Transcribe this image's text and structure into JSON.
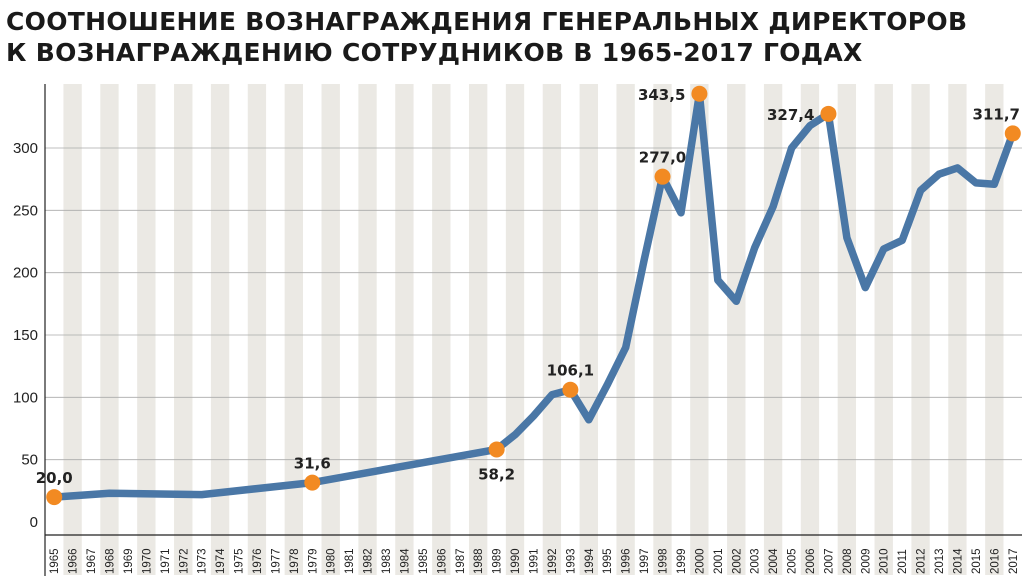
{
  "title_lines": [
    "СООТНОШЕНИЕ ВОЗНАГРАЖДЕНИЯ ГЕНЕРАЛЬНЫХ ДИРЕКТОРОВ",
    "К ВОЗНАГРАЖДЕНИЮ СОТРУДНИКОВ В 1965-2017 ГОДАХ"
  ],
  "colors": {
    "line": "#4a77a6",
    "marker": "#f28a22",
    "band_light": "#ffffff",
    "band_dark": "#ebe9e4",
    "grid": "#aaaaaa",
    "axis": "#222222"
  },
  "chart_data": {
    "type": "line",
    "title": "СООТНОШЕНИЕ ВОЗНАГРАЖДЕНИЯ ГЕНЕРАЛЬНЫХ ДИРЕКТОРОВ К ВОЗНАГРАЖДЕНИЮ СОТРУДНИКОВ В 1965-2017 ГОДАХ",
    "xlabel": "",
    "ylabel": "",
    "ylim": [
      0,
      345
    ],
    "yticks": [
      0,
      50,
      100,
      150,
      200,
      250,
      300
    ],
    "ytick_labels": [
      "0",
      "50",
      "100",
      "150",
      "200",
      "250",
      "300"
    ],
    "x_tick_labels": [
      "1965",
      "1966",
      "1967",
      "1968",
      "1969",
      "1970",
      "1971",
      "1972",
      "1973",
      "1974",
      "1975",
      "1976",
      "1977",
      "1978",
      "1979",
      "1980",
      "1981",
      "1982",
      "1983",
      "1984",
      "1985",
      "1986",
      "1987",
      "1988",
      "1989",
      "1990",
      "1991",
      "1992",
      "1993",
      "1994",
      "1995",
      "1996",
      "1997",
      "1998",
      "1999",
      "2000",
      "2001",
      "2002",
      "2003",
      "2004",
      "2005",
      "2006",
      "2007",
      "2008",
      "2009",
      "2010",
      "2011",
      "2012",
      "2013",
      "2014",
      "2015",
      "2016",
      "2017"
    ],
    "grid": true,
    "series": [
      {
        "points": [
          [
            1965,
            20.0
          ],
          [
            1968,
            23.0
          ],
          [
            1973,
            22.0
          ],
          [
            1979,
            31.6
          ],
          [
            1989,
            58.2
          ],
          [
            1990,
            70.0
          ],
          [
            1991,
            85.0
          ],
          [
            1992,
            102.0
          ],
          [
            1993,
            106.1
          ],
          [
            1994,
            82.0
          ],
          [
            1995,
            110.0
          ],
          [
            1996,
            140.0
          ],
          [
            1997,
            210.0
          ],
          [
            1998,
            277.0
          ],
          [
            1999,
            248.0
          ],
          [
            2000,
            343.5
          ],
          [
            2001,
            194.0
          ],
          [
            2002,
            177.0
          ],
          [
            2003,
            220.0
          ],
          [
            2004,
            253.0
          ],
          [
            2005,
            300.0
          ],
          [
            2006,
            318.0
          ],
          [
            2007,
            327.4
          ],
          [
            2008,
            228.0
          ],
          [
            2009,
            188.0
          ],
          [
            2010,
            219.0
          ],
          [
            2011,
            226.0
          ],
          [
            2012,
            266.0
          ],
          [
            2013,
            279.0
          ],
          [
            2014,
            284.0
          ],
          [
            2015,
            272.0
          ],
          [
            2016,
            271.0
          ],
          [
            2017,
            311.7
          ]
        ]
      }
    ],
    "highlighted": [
      {
        "x": 1965,
        "y": 20.0,
        "label": "20,0",
        "placement": "above"
      },
      {
        "x": 1979,
        "y": 31.6,
        "label": "31,6",
        "placement": "above"
      },
      {
        "x": 1989,
        "y": 58.2,
        "label": "58,2",
        "placement": "below"
      },
      {
        "x": 1993,
        "y": 106.1,
        "label": "106,1",
        "placement": "above"
      },
      {
        "x": 1998,
        "y": 277.0,
        "label": "277,0",
        "placement": "above"
      },
      {
        "x": 2000,
        "y": 343.5,
        "label": "343,5",
        "placement": "left"
      },
      {
        "x": 2007,
        "y": 327.4,
        "label": "327,4",
        "placement": "left"
      },
      {
        "x": 2017,
        "y": 311.7,
        "label": "311,7",
        "placement": "above"
      }
    ]
  }
}
